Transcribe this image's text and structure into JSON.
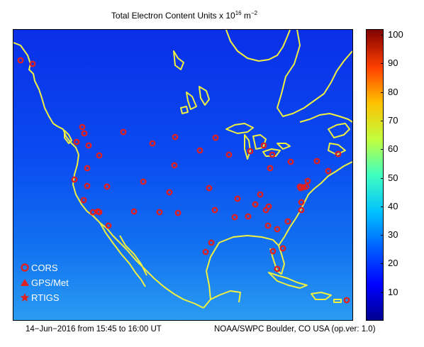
{
  "title": {
    "prefix": "Total Electron Content Units x 10",
    "exponent": "16",
    "unit": " m",
    "unit_exponent": "−2"
  },
  "colorbar": {
    "min": 0,
    "max": 102,
    "ticks": [
      "10",
      "20",
      "30",
      "40",
      "50",
      "60",
      "70",
      "80",
      "90",
      "100"
    ],
    "colors": [
      "#00008f",
      "#0000ff",
      "#0060ff",
      "#00c0ff",
      "#40ffc0",
      "#c0ff40",
      "#ffc000",
      "#ff4000",
      "#800000"
    ]
  },
  "legend": {
    "items": [
      {
        "label": "CORS",
        "symbol": "circle"
      },
      {
        "label": "GPS/Met",
        "symbol": "triangle"
      },
      {
        "label": "RTIGS",
        "symbol": "star"
      }
    ]
  },
  "footer": {
    "left": "14−Jun−2016 from 15:45 to 16:00 UT",
    "right": "NOAA/SWPC Boulder, CO USA (op.ver: 1.0)"
  },
  "colors": {
    "coastline": "#f0f040",
    "station": "#e02020",
    "map_north": "#0a2ee6",
    "map_south": "#1e8cf0"
  }
}
